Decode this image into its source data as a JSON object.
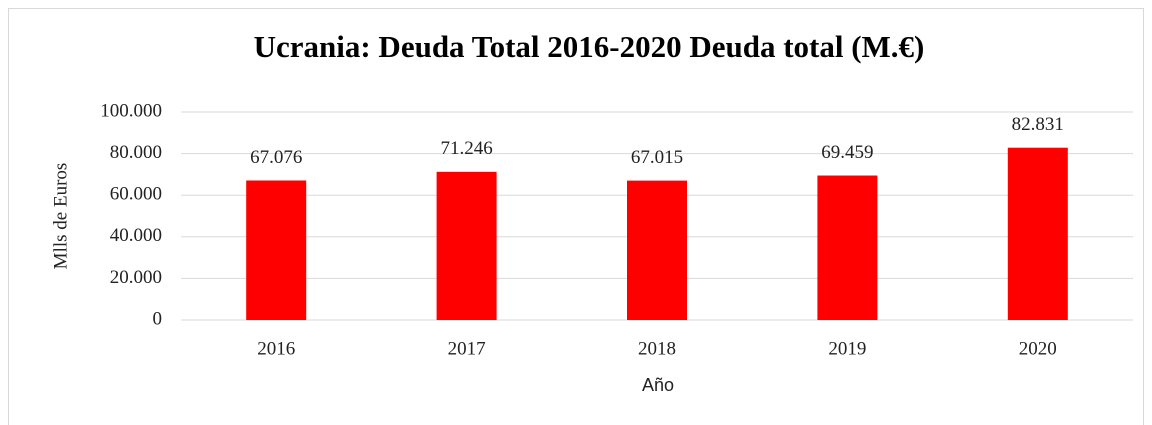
{
  "chart_data": {
    "type": "bar",
    "title": "Ucrania: Deuda Total 2016-2020 Deuda total (M.€)",
    "x_label": "Año",
    "y_label": "Mlls de Euros",
    "categories": [
      "2016",
      "2017",
      "2018",
      "2019",
      "2020"
    ],
    "values": [
      67076,
      71246,
      67015,
      69459,
      82831
    ],
    "value_labels": [
      "67.076",
      "71.246",
      "67.015",
      "69.459",
      "82.831"
    ],
    "color": "#ff0000",
    "ylim": [
      0,
      100000
    ],
    "yticks": [
      0,
      {
        "value": 20000,
        "label": "20.000"
      },
      {
        "value": 40000,
        "label": "40.000"
      },
      {
        "value": 60000,
        "label": "60.000"
      },
      {
        "value": 80000,
        "label": "80.000"
      },
      {
        "value": 100000,
        "label": "100.000"
      }
    ],
    "grid": true
  }
}
